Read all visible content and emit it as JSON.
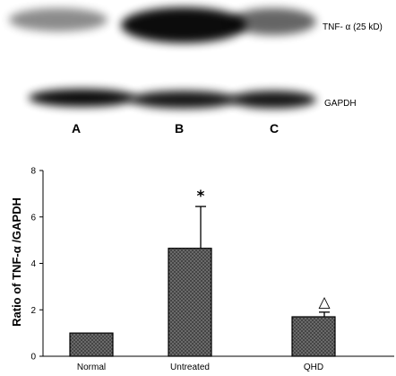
{
  "blot": {
    "upper_band_label": "TNF- α (25 kD)",
    "lower_band_label": "GAPDH",
    "lanes": [
      "A",
      "B",
      "C"
    ],
    "upper_band_intensity": [
      0.45,
      0.95,
      0.6
    ],
    "lower_band_intensity": [
      0.95,
      0.9,
      0.9
    ]
  },
  "chart_data": {
    "type": "bar",
    "categories": [
      "Normal",
      "Untreated",
      "QHD"
    ],
    "values": [
      1.0,
      4.65,
      1.7
    ],
    "errors": [
      0.0,
      1.8,
      0.2
    ],
    "significance": [
      "",
      "*",
      "△"
    ],
    "title": "",
    "xlabel": "",
    "ylabel": "Ratio of TNF-α /GAPDH",
    "ylim": [
      0,
      8
    ],
    "yticks": [
      0,
      2,
      4,
      6,
      8
    ],
    "grid": false,
    "bar_fill": "#595959"
  }
}
